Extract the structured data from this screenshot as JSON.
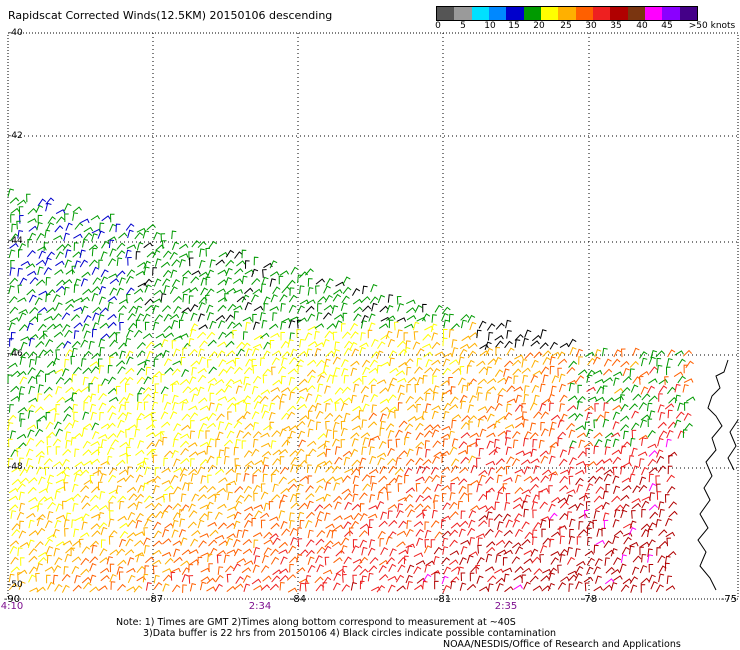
{
  "title": "Rapidscat Corrected Winds(12.5KM) 20150106 descending",
  "legend": {
    "colors": [
      "#555555",
      "#9a9a9a",
      "#00e0ff",
      "#0088ff",
      "#0000cc",
      "#009a00",
      "#ffff00",
      "#ffb000",
      "#ff6000",
      "#ee2020",
      "#b00000",
      "#7a3510",
      "#ff00ff",
      "#8a00ff",
      "#440088"
    ],
    "labels": [
      "0",
      "5",
      "10",
      "15",
      "20",
      "25",
      "30",
      "35",
      "40",
      "45",
      ">50 knots"
    ]
  },
  "lat_labels": [
    "-40",
    "-42",
    "-44",
    "-46",
    "-48",
    "-50"
  ],
  "lon_labels": [
    "-90",
    "-87",
    "-84",
    "-81",
    "-78",
    "-75"
  ],
  "time_labels": [
    "4:10",
    "2:34",
    "2:35"
  ],
  "notes": {
    "line1": "Note: 1) Times are GMT 2)Times along bottom correspond to measurement at ~40S",
    "line2": "3)Data buffer is 22 hrs from 20150106 4) Black circles indicate possible contamination",
    "line3": "NOAA/NESDIS/Office of Research and Applications"
  }
}
